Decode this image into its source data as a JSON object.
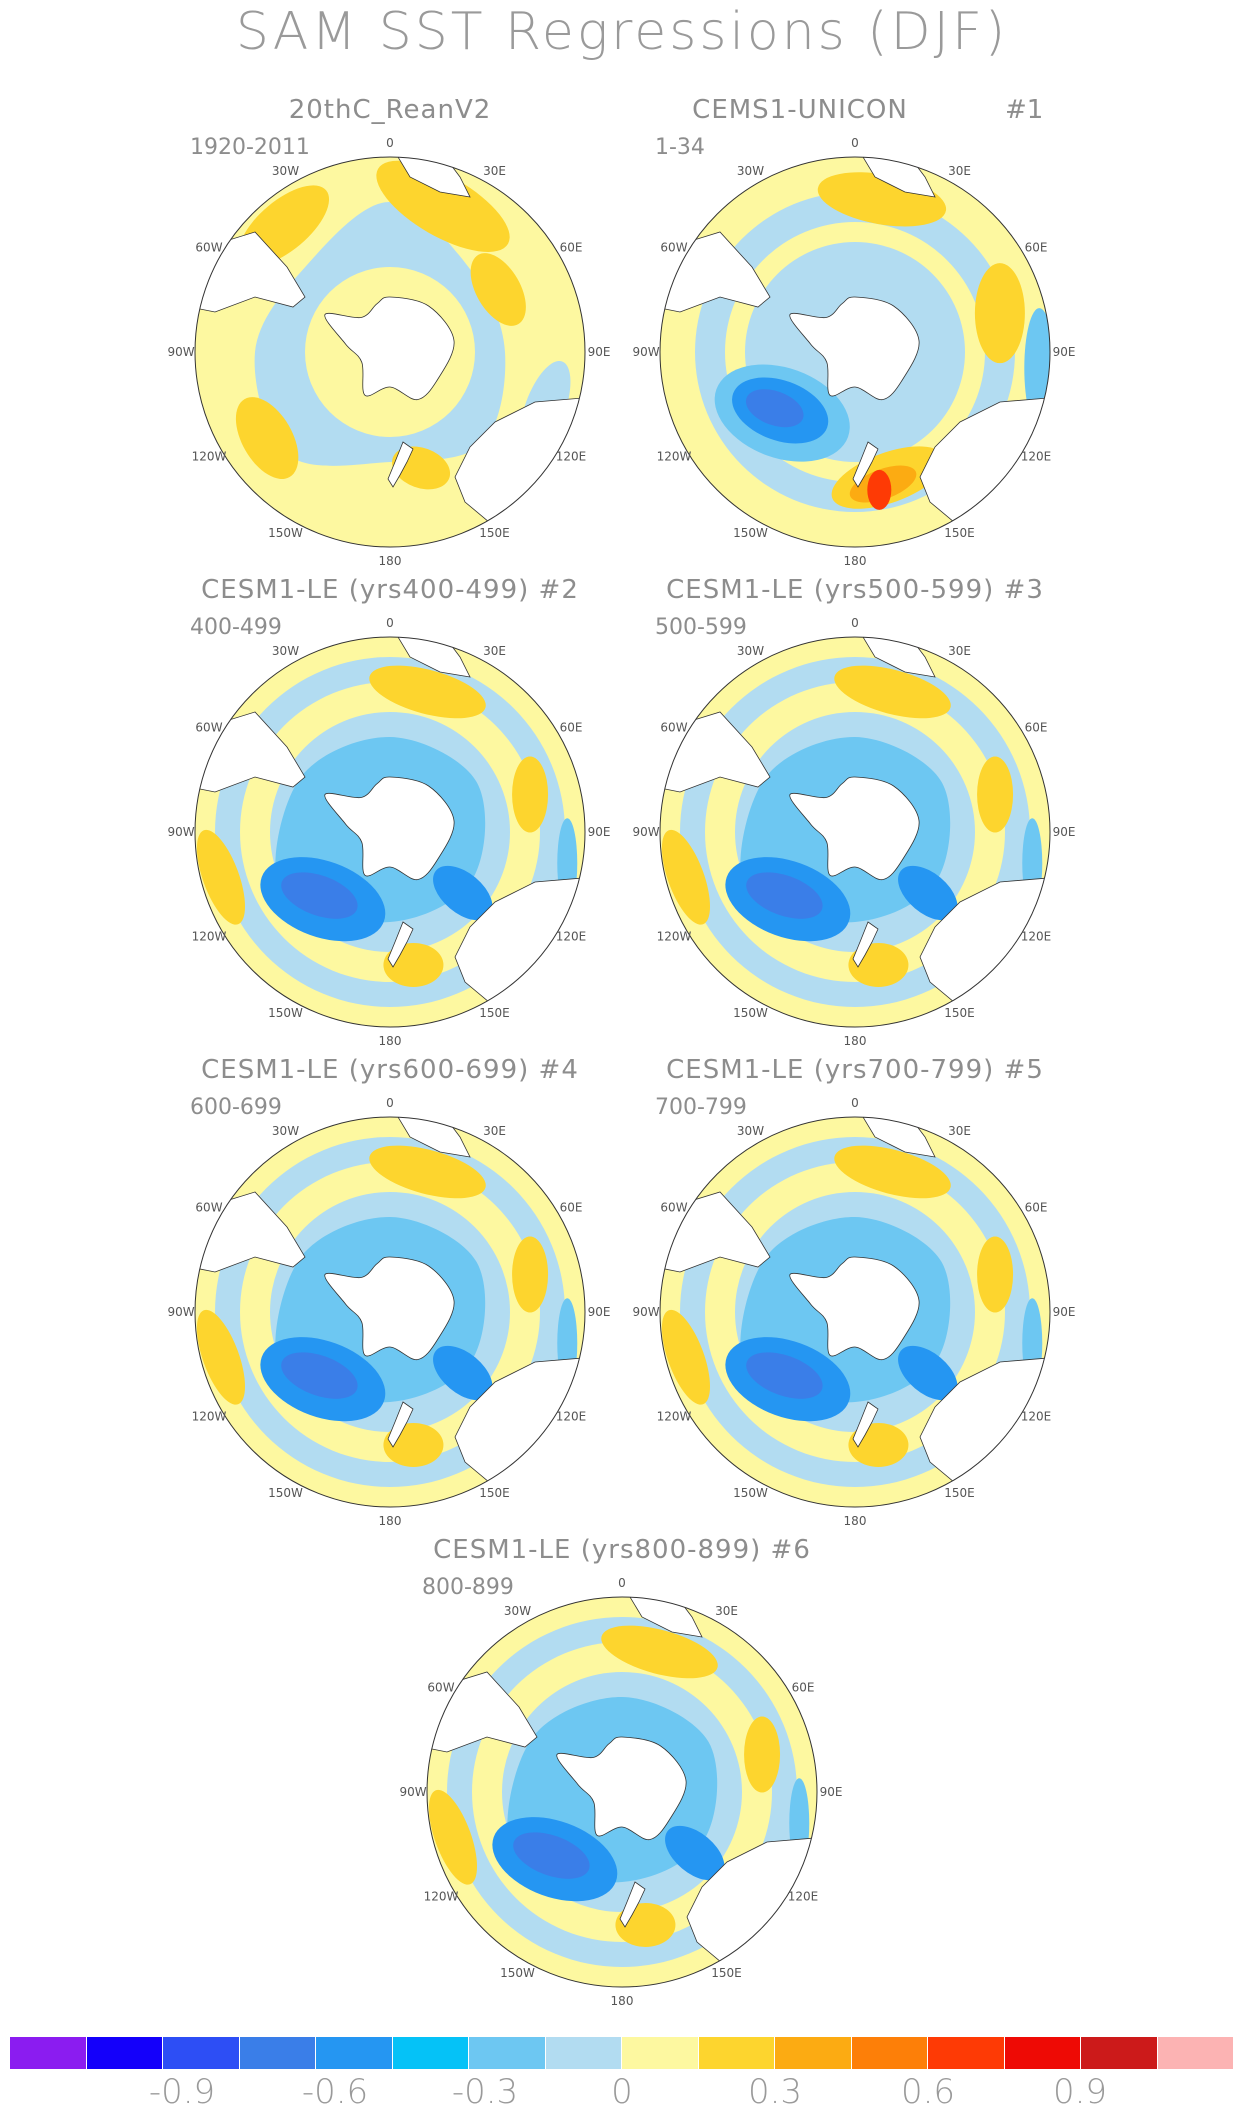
{
  "title": "SAM SST Regressions (DJF)",
  "panels": [
    {
      "title": "20thC_ReanV2",
      "tag": "",
      "range": "1920-2011",
      "style": "rean"
    },
    {
      "title": "CEMS1-UNICON",
      "tag": "#1",
      "range": "1-34",
      "style": "unicon"
    },
    {
      "title": "CESM1-LE (yrs400-499) #2",
      "tag": "",
      "range": "400-499",
      "style": "le"
    },
    {
      "title": "CESM1-LE (yrs500-599) #3",
      "tag": "",
      "range": "500-599",
      "style": "le"
    },
    {
      "title": "CESM1-LE (yrs600-699) #4",
      "tag": "",
      "range": "600-699",
      "style": "le"
    },
    {
      "title": "CESM1-LE (yrs700-799) #5",
      "tag": "",
      "range": "700-799",
      "style": "le"
    },
    {
      "title": "CESM1-LE (yrs800-899) #6",
      "tag": "",
      "range": "800-899",
      "style": "le"
    }
  ],
  "longitude_labels": [
    "0",
    "30E",
    "60E",
    "90E",
    "120E",
    "150E",
    "180",
    "150W",
    "120W",
    "90W",
    "60W",
    "30W"
  ],
  "colorbar": {
    "colors": [
      "#8b1cf0",
      "#1400fa",
      "#2d4ef5",
      "#3a7ee8",
      "#2596f2",
      "#05c2f7",
      "#6dc7f2",
      "#b2dcf1",
      "#fdf8a0",
      "#fdd52e",
      "#fcab12",
      "#fd7f08",
      "#fe3a05",
      "#ee0a05",
      "#cc1a1a",
      "#fcb3b3"
    ],
    "labels": [
      "-0.9",
      "-0.6",
      "-0.3",
      "0",
      "0.3",
      "0.6",
      "0.9"
    ]
  }
}
